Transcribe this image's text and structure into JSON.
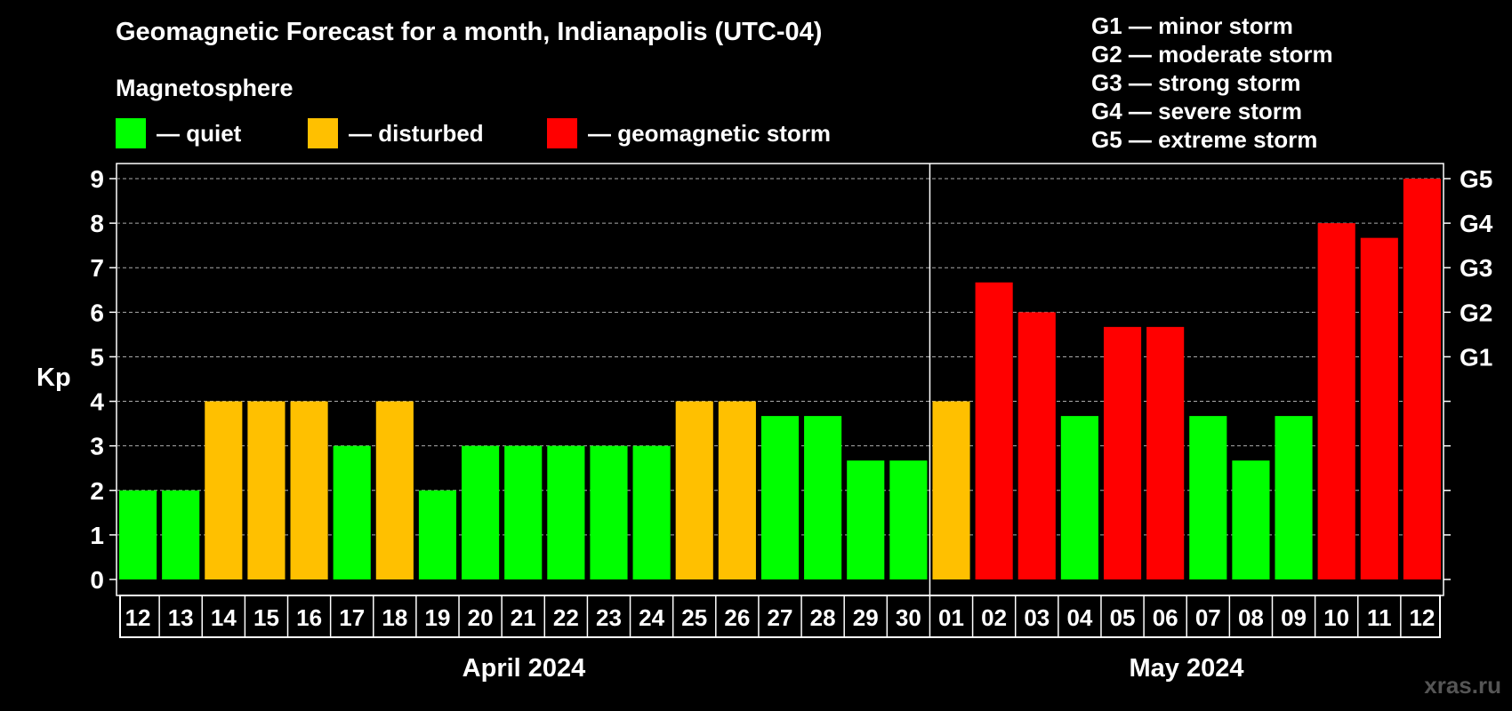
{
  "title": "Geomagnetic Forecast for a month, Indianapolis (UTC-04)",
  "magnetosphere_label": "Magnetosphere",
  "legend": [
    {
      "label": "— quiet",
      "color": "#00ff00"
    },
    {
      "label": "— disturbed",
      "color": "#ffc000"
    },
    {
      "label": "— geomagnetic storm",
      "color": "#ff0000"
    }
  ],
  "g_scale": [
    "G1 — minor storm",
    "G2 — moderate storm",
    "G3 — strong storm",
    "G4 — severe storm",
    "G5 — extreme storm"
  ],
  "watermark": "xras.ru",
  "colors": {
    "quiet": "#00ff00",
    "disturbed": "#ffc000",
    "storm": "#ff0000",
    "background": "#000000",
    "axis": "#ffffff"
  },
  "chart_data": {
    "type": "bar",
    "ylabel": "Kp",
    "ylim": [
      0,
      9
    ],
    "y_ticks": [
      0,
      1,
      2,
      3,
      4,
      5,
      6,
      7,
      8,
      9
    ],
    "right_axis": [
      {
        "value": 5,
        "label": "G1"
      },
      {
        "value": 6,
        "label": "G2"
      },
      {
        "value": 7,
        "label": "G3"
      },
      {
        "value": 8,
        "label": "G4"
      },
      {
        "value": 9,
        "label": "G5"
      }
    ],
    "grid": true,
    "months": [
      {
        "label": "April 2024",
        "days": [
          "12",
          "13",
          "14",
          "15",
          "16",
          "17",
          "18",
          "19",
          "20",
          "21",
          "22",
          "23",
          "24",
          "25",
          "26",
          "27",
          "28",
          "29",
          "30"
        ]
      },
      {
        "label": "May 2024",
        "days": [
          "01",
          "02",
          "03",
          "04",
          "05",
          "06",
          "07",
          "08",
          "09",
          "10",
          "11",
          "12"
        ]
      }
    ],
    "categories": [
      "12",
      "13",
      "14",
      "15",
      "16",
      "17",
      "18",
      "19",
      "20",
      "21",
      "22",
      "23",
      "24",
      "25",
      "26",
      "27",
      "28",
      "29",
      "30",
      "01",
      "02",
      "03",
      "04",
      "05",
      "06",
      "07",
      "08",
      "09",
      "10",
      "11",
      "12"
    ],
    "values": [
      2,
      2,
      4,
      4,
      4,
      3,
      4,
      2,
      3,
      3,
      3,
      3,
      3,
      4,
      4,
      3.67,
      3.67,
      2.67,
      2.67,
      4,
      6.67,
      6,
      3.67,
      5.67,
      5.67,
      3.67,
      2.67,
      3.67,
      8,
      7.67,
      9
    ],
    "levels": [
      "quiet",
      "quiet",
      "disturbed",
      "disturbed",
      "disturbed",
      "quiet",
      "disturbed",
      "quiet",
      "quiet",
      "quiet",
      "quiet",
      "quiet",
      "quiet",
      "disturbed",
      "disturbed",
      "quiet",
      "quiet",
      "quiet",
      "quiet",
      "disturbed",
      "storm",
      "storm",
      "quiet",
      "storm",
      "storm",
      "quiet",
      "quiet",
      "quiet",
      "storm",
      "storm",
      "storm"
    ]
  }
}
